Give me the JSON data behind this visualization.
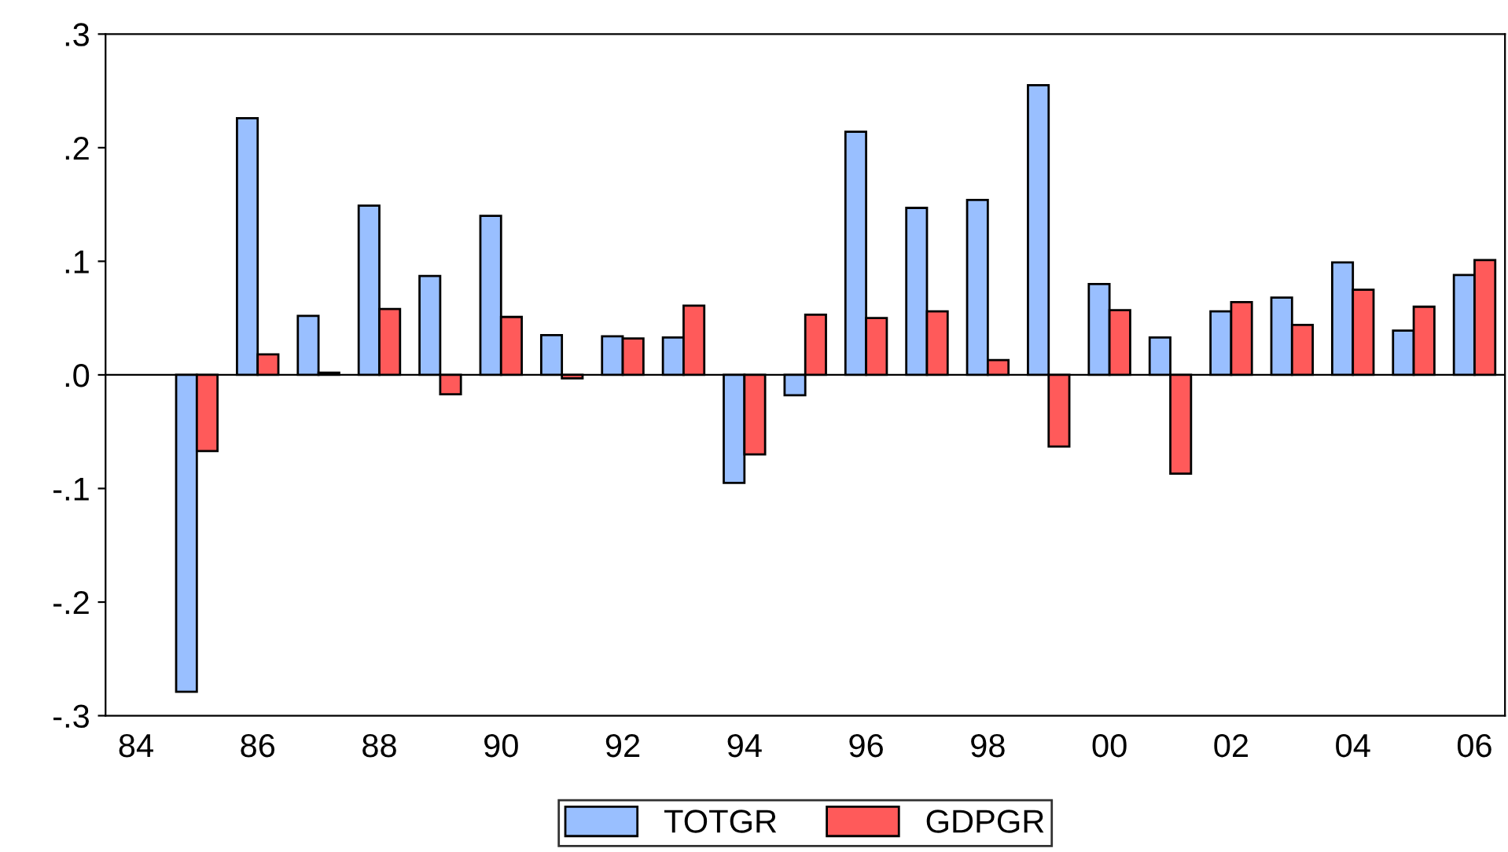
{
  "chart_data": {
    "type": "bar",
    "categories": [
      "84",
      null,
      "86",
      null,
      "88",
      null,
      "90",
      null,
      "92",
      null,
      "94",
      null,
      "96",
      null,
      "98",
      null,
      "00",
      null,
      "02",
      null,
      "04",
      null,
      "06"
    ],
    "series": [
      {
        "name": "TOTGR",
        "color": "#99bfff",
        "values": [
          null,
          -0.279,
          0.226,
          0.052,
          0.149,
          0.087,
          0.14,
          0.035,
          0.034,
          0.033,
          -0.095,
          -0.018,
          0.214,
          0.147,
          0.154,
          0.255,
          0.08,
          0.033,
          0.056,
          0.068,
          0.099,
          0.039,
          0.088
        ]
      },
      {
        "name": "GDPGR",
        "color": "#ff5a5a",
        "values": [
          null,
          -0.067,
          0.018,
          0.002,
          0.058,
          -0.017,
          0.051,
          -0.003,
          0.032,
          0.061,
          -0.07,
          0.053,
          0.05,
          0.056,
          0.013,
          -0.063,
          0.057,
          -0.087,
          0.064,
          0.044,
          0.075,
          0.06,
          0.101
        ]
      }
    ],
    "ylim": [
      -0.3,
      0.3
    ],
    "yticks": [
      {
        "value": 0.3,
        "label": ".3"
      },
      {
        "value": 0.2,
        "label": ".2"
      },
      {
        "value": 0.1,
        "label": ".1"
      },
      {
        "value": 0,
        "label": ".0"
      },
      {
        "value": -0.1,
        "label": "-.1"
      },
      {
        "value": -0.2,
        "label": "-.2"
      },
      {
        "value": -0.3,
        "label": "-.3"
      }
    ],
    "ref_lines": [
      {
        "axis": "y",
        "value": 0,
        "color": "#000000"
      }
    ],
    "legend": "bottom",
    "grid": false
  }
}
